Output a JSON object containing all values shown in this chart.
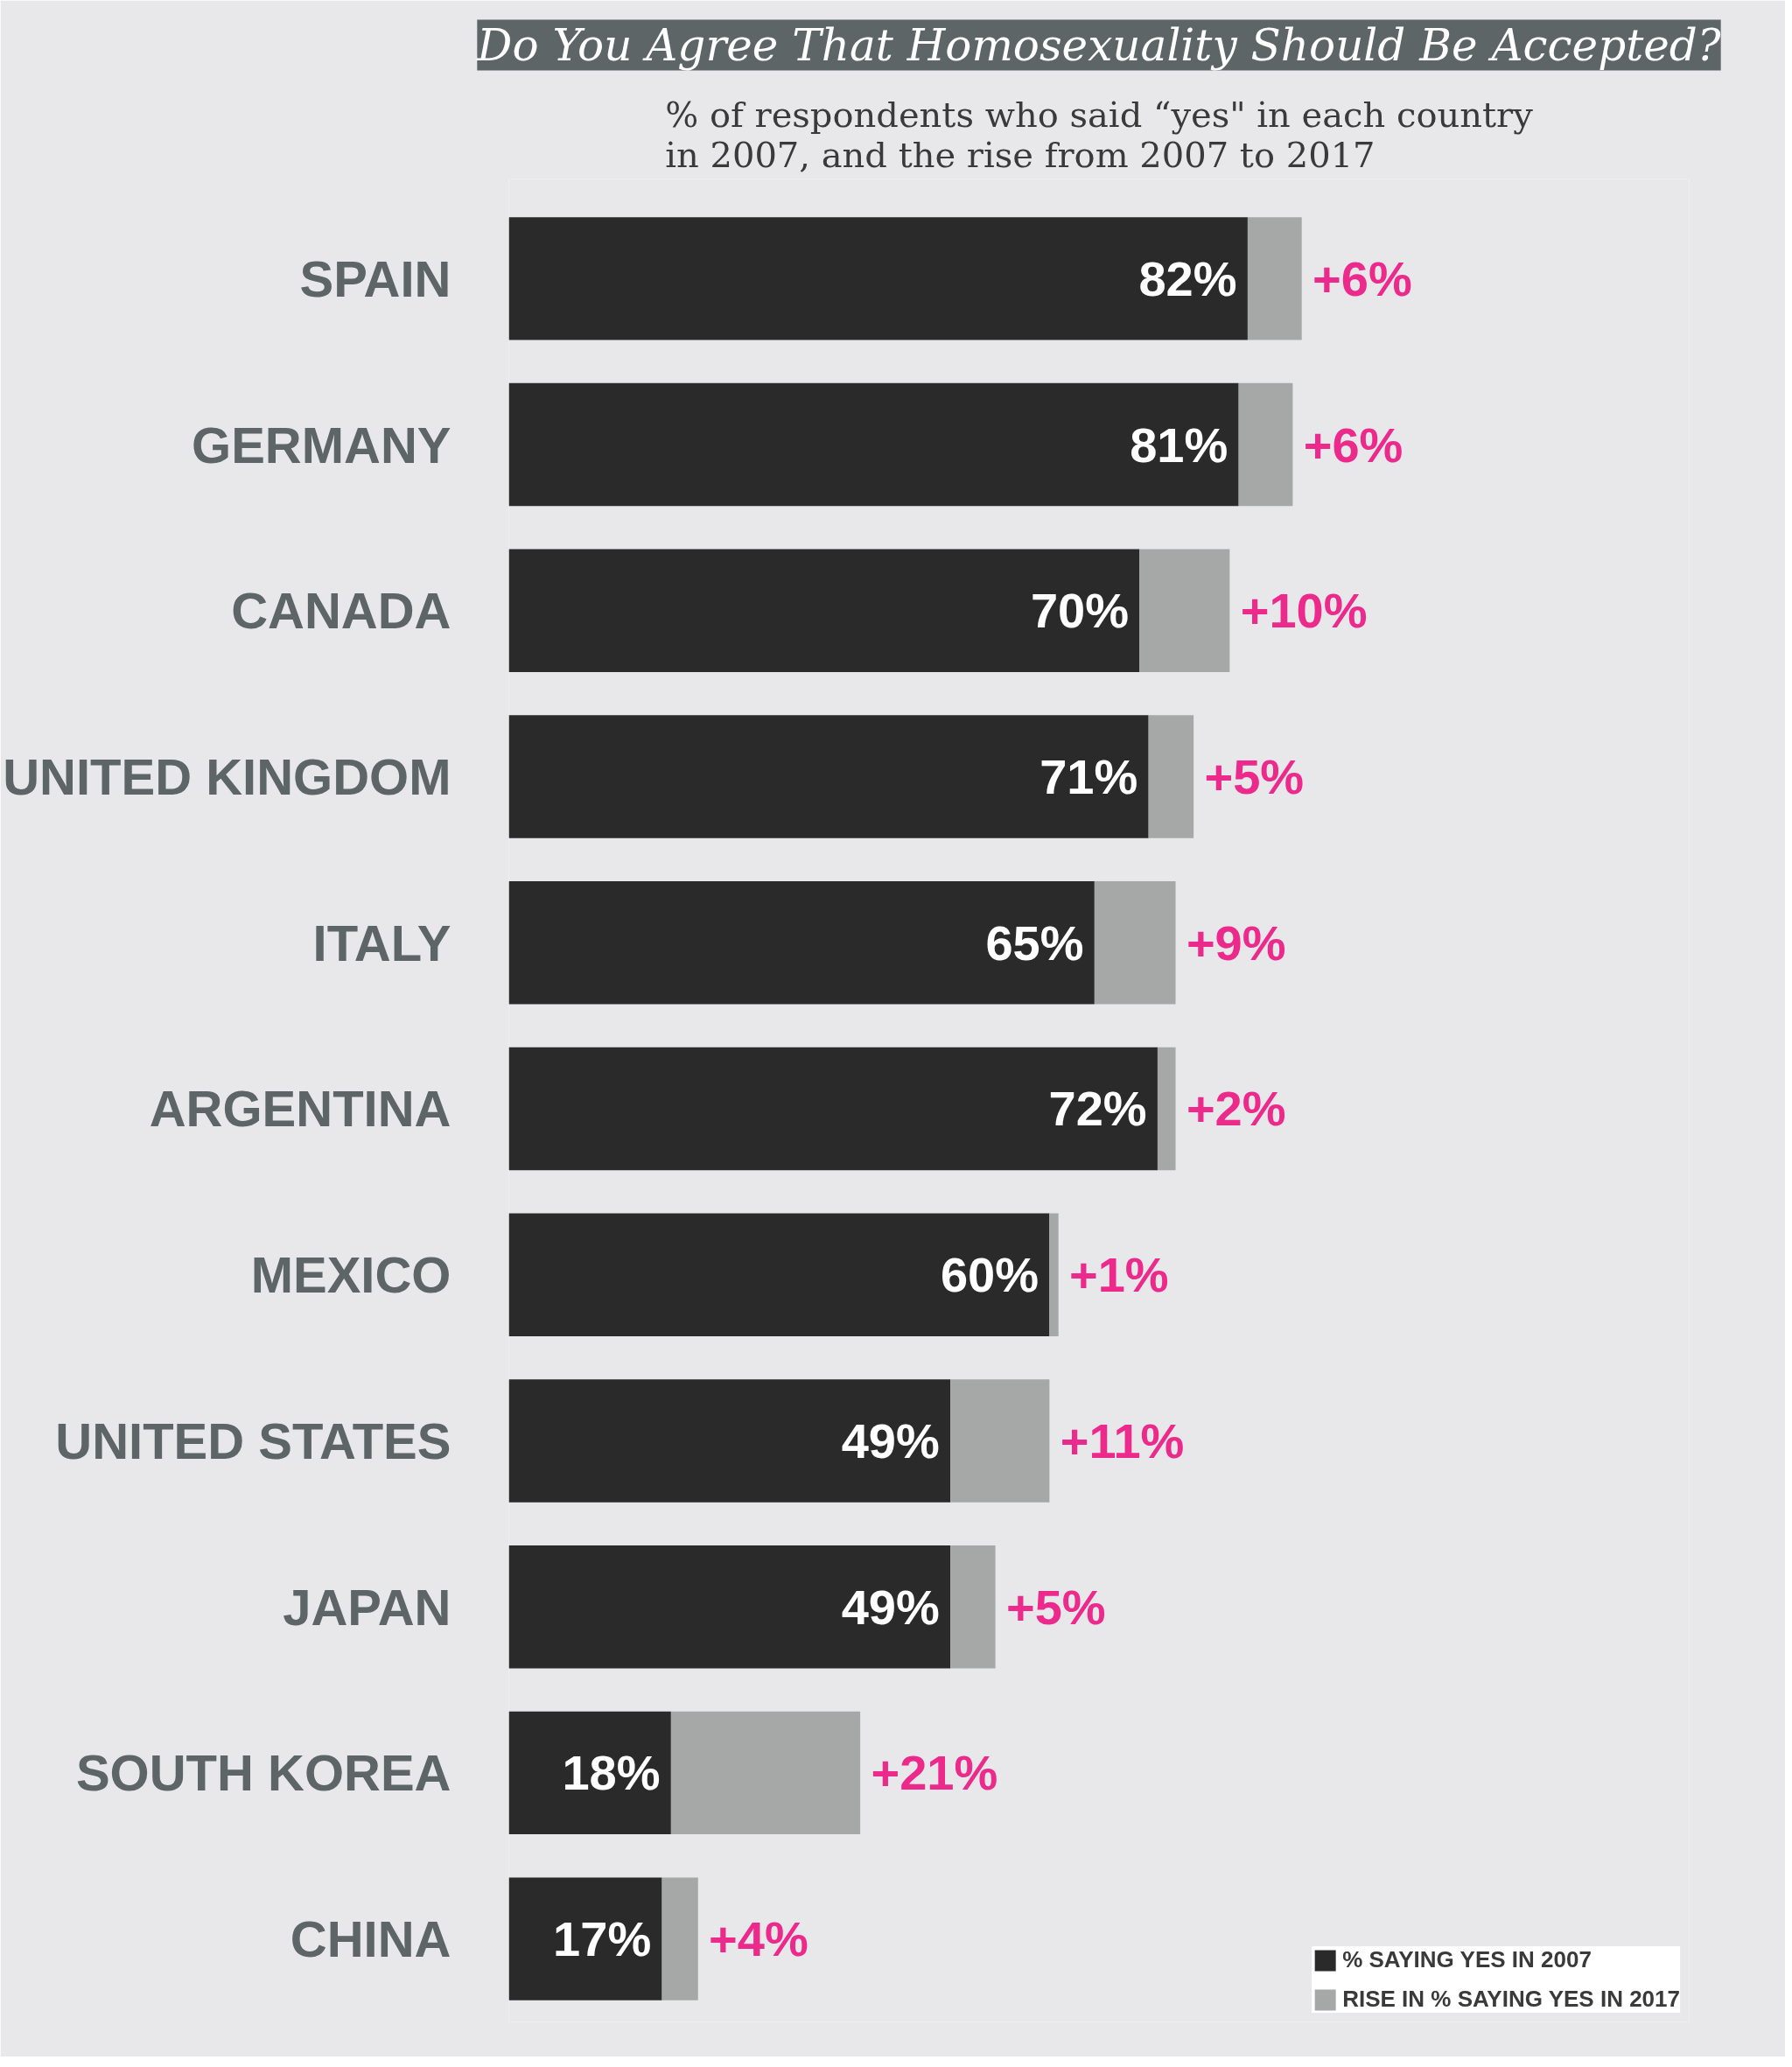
{
  "chart_data": {
    "type": "bar",
    "orientation": "horizontal",
    "stacked": true,
    "title": "Do You Agree That Homosexuality Should Be Accepted?",
    "subtitle": "% of respondents who said “yes\" in each country in 2007, and the rise from 2007 to 2017",
    "categories": [
      "SPAIN",
      "GERMANY",
      "CANADA",
      "UNITED KINGDOM",
      "ITALY",
      "ARGENTINA",
      "MEXICO",
      "UNITED STATES",
      "JAPAN",
      "SOUTH KOREA",
      "CHINA"
    ],
    "series": [
      {
        "name": "% SAYING YES IN 2007",
        "color": "#2a2a2a",
        "values": [
          82,
          81,
          70,
          71,
          65,
          72,
          60,
          49,
          49,
          18,
          17
        ],
        "value_labels": [
          "82%",
          "81%",
          "70%",
          "71%",
          "65%",
          "72%",
          "60%",
          "49%",
          "49%",
          "18%",
          "17%"
        ]
      },
      {
        "name": "RISE IN % SAYING YES IN 2017",
        "color": "#a5a8a6",
        "values": [
          6,
          6,
          10,
          5,
          9,
          2,
          1,
          11,
          5,
          21,
          4
        ],
        "value_labels": [
          "+6%",
          "+6%",
          "+10%",
          "+5%",
          "+9%",
          "+2%",
          "+1%",
          "+11%",
          "+5%",
          "+21%",
          "+4%"
        ]
      }
    ],
    "xlim": [
      0,
      131
    ],
    "tick_labels": "y",
    "legend": "bottom right"
  }
}
